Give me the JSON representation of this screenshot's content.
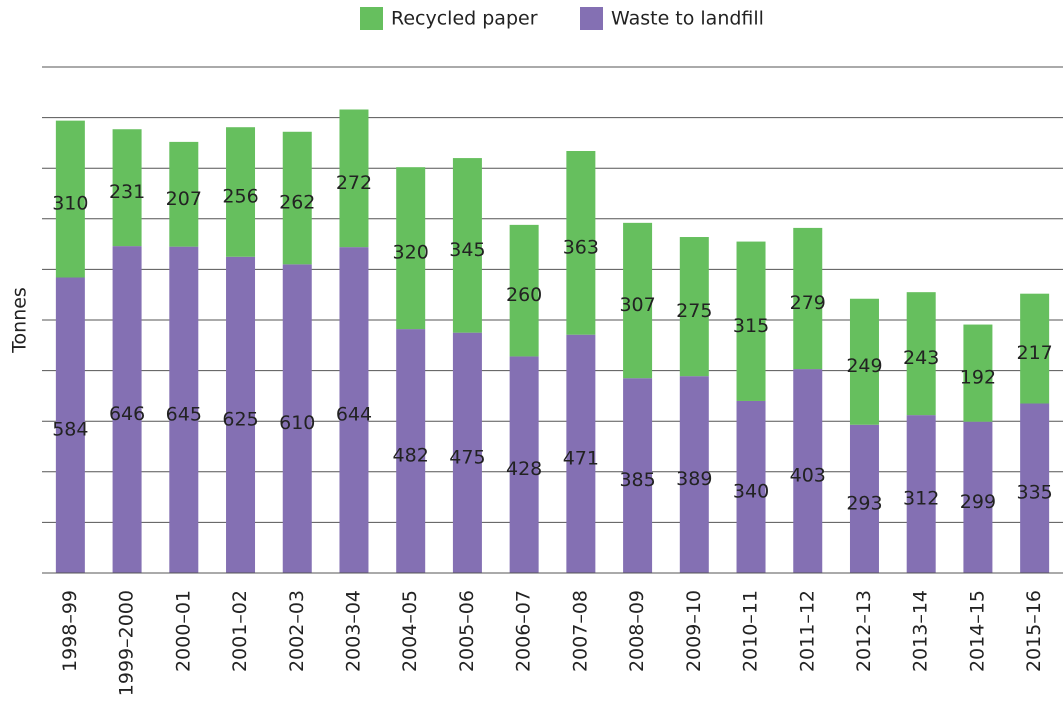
{
  "chart_data": {
    "type": "stacked_bar",
    "y_label": "Tonnes",
    "categories": [
      "1998–99",
      "1999–2000",
      "2000–01",
      "2001–02",
      "2002–03",
      "2003–04",
      "2004–05",
      "2005–06",
      "2006–07",
      "2007–08",
      "2008–09",
      "2009–10",
      "2010–11",
      "2011–12",
      "2012–13",
      "2013–14",
      "2014–15",
      "2015–16"
    ],
    "series": [
      {
        "name": "Recycled paper",
        "color": "#66bf5e",
        "values": [
          310,
          231,
          207,
          256,
          262,
          272,
          320,
          345,
          260,
          363,
          307,
          275,
          315,
          279,
          249,
          243,
          192,
          217
        ]
      },
      {
        "name": "Waste to landfill",
        "color": "#8470b3",
        "values": [
          584,
          646,
          645,
          625,
          610,
          644,
          482,
          475,
          428,
          471,
          385,
          389,
          340,
          403,
          293,
          312,
          299,
          335
        ]
      }
    ],
    "ylim": [
      0,
      1000
    ],
    "yticks": [
      0,
      100,
      200,
      300,
      400,
      500,
      600,
      700,
      800,
      900,
      1000
    ],
    "grid": true
  }
}
